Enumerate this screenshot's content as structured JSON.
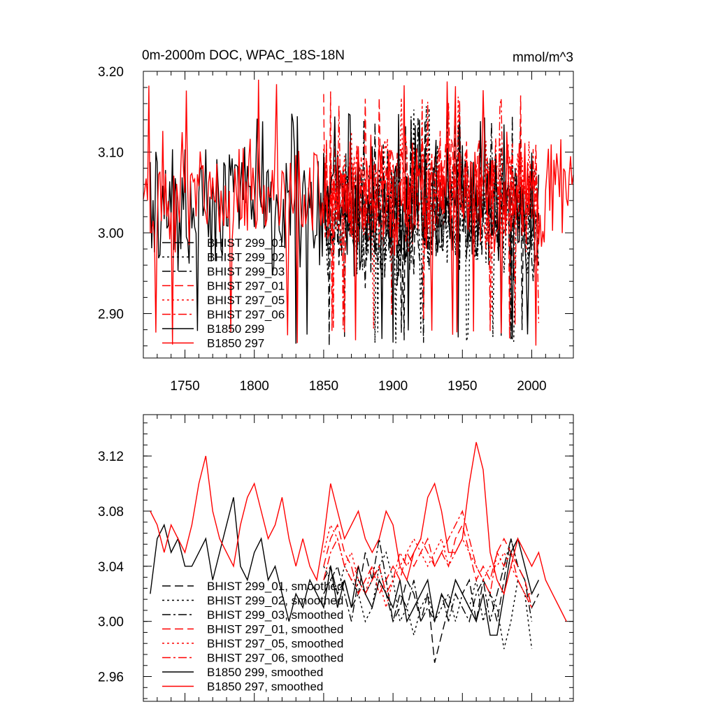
{
  "chart_data": [
    {
      "type": "line",
      "title": "0m-2000m DOC, WPAC_18S-18N",
      "units": "mmol/m^3",
      "xlim": [
        1720,
        2030
      ],
      "ylim": [
        2.845,
        3.2
      ],
      "yticks": [
        2.9,
        3.0,
        3.1,
        3.2
      ],
      "ytick_labels": [
        "2.90",
        "3.00",
        "3.10",
        "3.20"
      ],
      "xticks": [
        1750,
        1800,
        1850,
        1900,
        1950,
        2000
      ],
      "xtick_labels": [
        "1750",
        "1800",
        "1850",
        "1900",
        "1950",
        "2000"
      ],
      "legend_position": "bottom-left",
      "series": [
        {
          "name": "BHIST 299_01",
          "color": "#000000",
          "dash": "dashed",
          "x_start": 1850,
          "x_end": 2005,
          "mean": 3.02,
          "amp": 0.06,
          "min": 2.86,
          "max": 3.15,
          "seed": 11
        },
        {
          "name": "BHIST 299_02",
          "color": "#000000",
          "dash": "dotted",
          "x_start": 1850,
          "x_end": 2005,
          "mean": 3.02,
          "amp": 0.06,
          "min": 2.86,
          "max": 3.16,
          "seed": 12
        },
        {
          "name": "BHIST 299_03",
          "color": "#000000",
          "dash": "dashdot",
          "x_start": 1850,
          "x_end": 2005,
          "mean": 3.02,
          "amp": 0.06,
          "min": 2.87,
          "max": 3.15,
          "seed": 13
        },
        {
          "name": "BHIST 297_01",
          "color": "#ff0000",
          "dash": "dashed",
          "x_start": 1850,
          "x_end": 2005,
          "mean": 3.05,
          "amp": 0.055,
          "min": 2.86,
          "max": 3.18,
          "seed": 21
        },
        {
          "name": "BHIST 297_05",
          "color": "#ff0000",
          "dash": "dotted",
          "x_start": 1850,
          "x_end": 2005,
          "mean": 3.05,
          "amp": 0.055,
          "min": 2.88,
          "max": 3.17,
          "seed": 22
        },
        {
          "name": "BHIST 297_06",
          "color": "#ff0000",
          "dash": "dashdot",
          "x_start": 1850,
          "x_end": 2005,
          "mean": 3.05,
          "amp": 0.055,
          "min": 2.88,
          "max": 3.17,
          "seed": 23
        },
        {
          "name": "B1850 299",
          "color": "#000000",
          "dash": "solid",
          "x_start": 1725,
          "x_end": 2005,
          "mean": 3.03,
          "amp": 0.06,
          "min": 2.86,
          "max": 3.15,
          "seed": 31
        },
        {
          "name": "B1850 297",
          "color": "#ff0000",
          "dash": "solid",
          "x_start": 1720,
          "x_end": 2030,
          "mean": 3.05,
          "amp": 0.055,
          "min": 2.86,
          "max": 3.19,
          "seed": 32
        }
      ]
    },
    {
      "type": "line",
      "title": "",
      "xlim": [
        1720,
        2030
      ],
      "ylim": [
        2.942,
        3.15
      ],
      "yticks": [
        2.96,
        3.0,
        3.04,
        3.08,
        3.12
      ],
      "ytick_labels": [
        "2.96",
        "3.00",
        "3.04",
        "3.08",
        "3.12"
      ],
      "xticks": [
        1750,
        1800,
        1850,
        1900,
        1950,
        2000
      ],
      "legend_position": "bottom-left",
      "series": [
        {
          "name": "BHIST 299_01, smoothed",
          "color": "#000000",
          "dash": "dashed",
          "x": [
            1850,
            1855,
            1860,
            1865,
            1870,
            1875,
            1880,
            1885,
            1890,
            1895,
            1900,
            1905,
            1910,
            1915,
            1920,
            1925,
            1930,
            1935,
            1940,
            1945,
            1950,
            1955,
            1960,
            1965,
            1970,
            1975,
            1980,
            1985,
            1990,
            1995,
            2000,
            2005
          ],
          "y": [
            3.03,
            3.04,
            3.02,
            3.03,
            3.01,
            3.02,
            3.05,
            3.03,
            3.04,
            3.02,
            3.0,
            3.01,
            3.03,
            3.02,
            3.0,
            3.02,
            2.97,
            2.99,
            3.01,
            3.03,
            3.02,
            3.03,
            3.0,
            3.03,
            3.02,
            3.0,
            3.03,
            3.06,
            3.04,
            3.03,
            3.01,
            3.02
          ]
        },
        {
          "name": "BHIST 299_02, smoothed",
          "color": "#000000",
          "dash": "dotted",
          "x": [
            1850,
            1855,
            1860,
            1865,
            1870,
            1875,
            1880,
            1885,
            1890,
            1895,
            1900,
            1905,
            1910,
            1915,
            1920,
            1925,
            1930,
            1935,
            1940,
            1945,
            1950,
            1955,
            1960,
            1965,
            1970,
            1975,
            1980,
            1985,
            1990,
            1995,
            2000
          ],
          "y": [
            3.04,
            3.03,
            3.02,
            3.04,
            3.03,
            3.02,
            3.0,
            3.01,
            3.04,
            3.05,
            3.03,
            3.0,
            3.01,
            2.99,
            3.01,
            3.02,
            3.0,
            3.01,
            3.02,
            3.0,
            3.02,
            3.01,
            3.03,
            3.0,
            3.02,
            3.01,
            2.98,
            3.0,
            3.03,
            3.02,
            2.98
          ]
        },
        {
          "name": "BHIST 299_03, smoothed",
          "color": "#000000",
          "dash": "dashdot",
          "x": [
            1850,
            1855,
            1860,
            1865,
            1870,
            1875,
            1880,
            1885,
            1890,
            1895,
            1900,
            1905,
            1910,
            1915,
            1920,
            1925,
            1930,
            1935,
            1940,
            1945,
            1950,
            1955,
            1960,
            1965,
            1970,
            1975,
            1980,
            1985,
            1990,
            1995,
            2000
          ],
          "y": [
            3.02,
            3.03,
            3.04,
            3.02,
            3.0,
            3.03,
            3.02,
            3.03,
            3.06,
            3.03,
            3.0,
            3.02,
            3.01,
            3.03,
            3.0,
            3.01,
            3.0,
            3.02,
            3.0,
            3.02,
            3.01,
            3.0,
            3.02,
            3.03,
            3.0,
            3.02,
            3.04,
            3.06,
            3.04,
            3.03,
            3.0
          ]
        },
        {
          "name": "BHIST 297_01, smoothed",
          "color": "#ff0000",
          "dash": "dashed",
          "x": [
            1850,
            1855,
            1860,
            1865,
            1870,
            1875,
            1880,
            1885,
            1890,
            1895,
            1900,
            1905,
            1910,
            1915,
            1920,
            1925,
            1930,
            1935,
            1940,
            1945,
            1950,
            1955,
            1960,
            1965,
            1970,
            1975,
            1980,
            1985,
            1990,
            1995,
            2000
          ],
          "y": [
            3.04,
            3.06,
            3.07,
            3.05,
            3.04,
            3.02,
            3.03,
            3.04,
            3.02,
            3.03,
            3.04,
            3.03,
            3.05,
            3.04,
            3.05,
            3.06,
            3.04,
            3.05,
            3.04,
            3.06,
            3.07,
            3.05,
            3.03,
            3.04,
            3.03,
            3.05,
            3.06,
            3.05,
            3.04,
            3.03,
            3.01
          ]
        },
        {
          "name": "BHIST 297_05, smoothed",
          "color": "#ff0000",
          "dash": "dotted",
          "x": [
            1850,
            1855,
            1860,
            1865,
            1870,
            1875,
            1880,
            1885,
            1890,
            1895,
            1900,
            1905,
            1910,
            1915,
            1920,
            1925,
            1930,
            1935,
            1940,
            1945,
            1950,
            1955,
            1960,
            1965,
            1970,
            1975,
            1980,
            1985,
            1990,
            1995,
            2000
          ],
          "y": [
            3.05,
            3.07,
            3.06,
            3.04,
            3.05,
            3.03,
            3.02,
            3.04,
            3.03,
            3.01,
            3.03,
            3.04,
            3.05,
            3.06,
            3.05,
            3.04,
            3.05,
            3.06,
            3.04,
            3.05,
            3.06,
            3.05,
            3.04,
            3.03,
            3.04,
            3.04,
            3.05,
            3.04,
            3.03,
            3.02,
            3.02
          ]
        },
        {
          "name": "BHIST 297_06, smoothed",
          "color": "#ff0000",
          "dash": "dashdot",
          "x": [
            1850,
            1855,
            1860,
            1865,
            1870,
            1875,
            1880,
            1885,
            1890,
            1895,
            1900,
            1905,
            1910,
            1915,
            1920,
            1925,
            1930,
            1935,
            1940,
            1945,
            1950,
            1955,
            1960,
            1965,
            1970,
            1975,
            1980,
            1985,
            1990,
            1995,
            2000
          ],
          "y": [
            3.03,
            3.05,
            3.06,
            3.04,
            3.03,
            3.04,
            3.02,
            3.03,
            3.04,
            3.02,
            3.03,
            3.05,
            3.04,
            3.05,
            3.06,
            3.05,
            3.04,
            3.05,
            3.06,
            3.07,
            3.08,
            3.06,
            3.04,
            3.03,
            3.02,
            3.05,
            3.04,
            3.05,
            3.03,
            3.02,
            3.01
          ]
        },
        {
          "name": "B1850 299, smoothed",
          "color": "#000000",
          "dash": "solid",
          "x": [
            1725,
            1730,
            1735,
            1740,
            1745,
            1750,
            1755,
            1760,
            1765,
            1770,
            1775,
            1780,
            1785,
            1790,
            1795,
            1800,
            1805,
            1810,
            1815,
            1820,
            1825,
            1830,
            1835,
            1840,
            1845,
            1850,
            1855,
            1860,
            1865,
            1870,
            1875,
            1880,
            1885,
            1890,
            1895,
            1900,
            1905,
            1910,
            1915,
            1920,
            1925,
            1930,
            1935,
            1940,
            1945,
            1950,
            1955,
            1960,
            1965,
            1970,
            1975,
            1980,
            1985,
            1990,
            1995,
            2000,
            2005
          ],
          "y": [
            3.02,
            3.06,
            3.07,
            3.05,
            3.06,
            3.04,
            3.04,
            3.05,
            3.06,
            3.03,
            3.05,
            3.07,
            3.09,
            3.04,
            3.03,
            3.05,
            3.06,
            3.03,
            3.04,
            3.02,
            3.0,
            3.02,
            3.01,
            3.03,
            3.02,
            3.01,
            3.04,
            3.01,
            3.03,
            3.01,
            3.04,
            3.02,
            3.01,
            3.03,
            3.02,
            3.01,
            3.03,
            3.0,
            3.01,
            3.02,
            3.03,
            3.0,
            3.02,
            3.01,
            3.03,
            3.02,
            3.01,
            3.0,
            3.02,
            2.99,
            2.99,
            3.02,
            3.05,
            3.06,
            3.04,
            3.02,
            3.03
          ]
        },
        {
          "name": "B1850 297, smoothed",
          "color": "#ff0000",
          "dash": "solid",
          "x": [
            1725,
            1730,
            1735,
            1740,
            1745,
            1750,
            1755,
            1760,
            1765,
            1770,
            1775,
            1780,
            1785,
            1790,
            1795,
            1800,
            1805,
            1810,
            1815,
            1820,
            1825,
            1830,
            1835,
            1840,
            1845,
            1850,
            1855,
            1860,
            1865,
            1870,
            1875,
            1880,
            1885,
            1890,
            1895,
            1900,
            1905,
            1910,
            1915,
            1920,
            1925,
            1930,
            1935,
            1940,
            1945,
            1950,
            1955,
            1960,
            1965,
            1970,
            1975,
            1980,
            1985,
            1990,
            1995,
            2000,
            2005,
            2010,
            2015,
            2020,
            2025
          ],
          "y": [
            3.08,
            3.07,
            3.05,
            3.07,
            3.06,
            3.05,
            3.07,
            3.1,
            3.12,
            3.08,
            3.06,
            3.05,
            3.04,
            3.07,
            3.09,
            3.1,
            3.08,
            3.06,
            3.07,
            3.09,
            3.06,
            3.04,
            3.06,
            3.04,
            3.03,
            3.06,
            3.1,
            3.08,
            3.06,
            3.07,
            3.08,
            3.06,
            3.05,
            3.06,
            3.08,
            3.07,
            3.04,
            3.03,
            3.05,
            3.06,
            3.09,
            3.1,
            3.08,
            3.05,
            3.05,
            3.06,
            3.1,
            3.13,
            3.11,
            3.05,
            3.03,
            3.02,
            3.04,
            3.06,
            3.05,
            3.04,
            3.05,
            3.03,
            3.02,
            3.01,
            3.0
          ]
        }
      ]
    }
  ]
}
